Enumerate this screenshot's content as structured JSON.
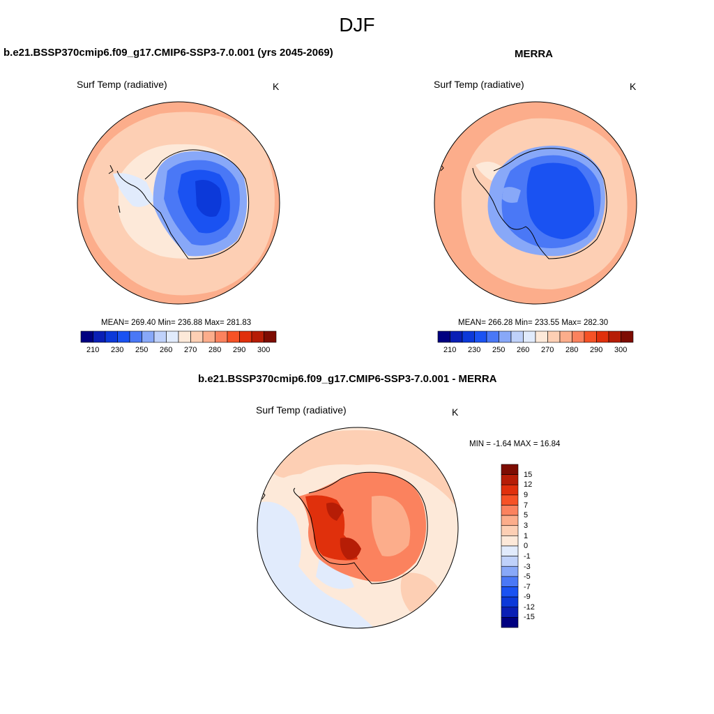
{
  "figure": {
    "season": "DJF"
  },
  "palette": [
    "#000080",
    "#0a1fb5",
    "#0c39d9",
    "#1a52f2",
    "#4a78f6",
    "#88a8f8",
    "#bfd1fa",
    "#e1ebfc",
    "#fde9d9",
    "#fdcfb4",
    "#fcad8b",
    "#fb825e",
    "#f65226",
    "#e0300c",
    "#b61d06",
    "#7d0c02"
  ],
  "colors": {
    "ocean_warm": "#fdcfb4",
    "ocean_warmer": "#fcad8b",
    "ice_cold": "#1a52f2",
    "ice_mid": "#4a78f6",
    "coast": "#000000"
  },
  "panels": {
    "model": {
      "title": "b.e21.BSSP370cmip6.f09_g17.CMIP6-SSP3-7.0.001 (yrs 2045-2069)",
      "variable": "Surf Temp (radiative)",
      "units": "K",
      "stats": "MEAN= 269.40  Min= 236.88  Max= 281.83"
    },
    "obs": {
      "title": "MERRA",
      "variable": "Surf Temp (radiative)",
      "units": "K",
      "stats": "MEAN= 266.28  Min= 233.55  Max= 282.30"
    },
    "diff": {
      "title": "b.e21.BSSP370cmip6.f09_g17.CMIP6-SSP3-7.0.001 - MERRA",
      "variable": "Surf Temp (radiative)",
      "units": "K",
      "stats": "MIN =  -1.64 MAX =  16.84"
    }
  },
  "colorbars": {
    "abs_labels": [
      "210",
      "230",
      "250",
      "260",
      "270",
      "280",
      "290",
      "300"
    ],
    "diff_labels": [
      "15",
      "12",
      "9",
      "7",
      "5",
      "3",
      "1",
      "0",
      "-1",
      "-3",
      "-5",
      "-7",
      "-9",
      "-12",
      "-15"
    ]
  }
}
